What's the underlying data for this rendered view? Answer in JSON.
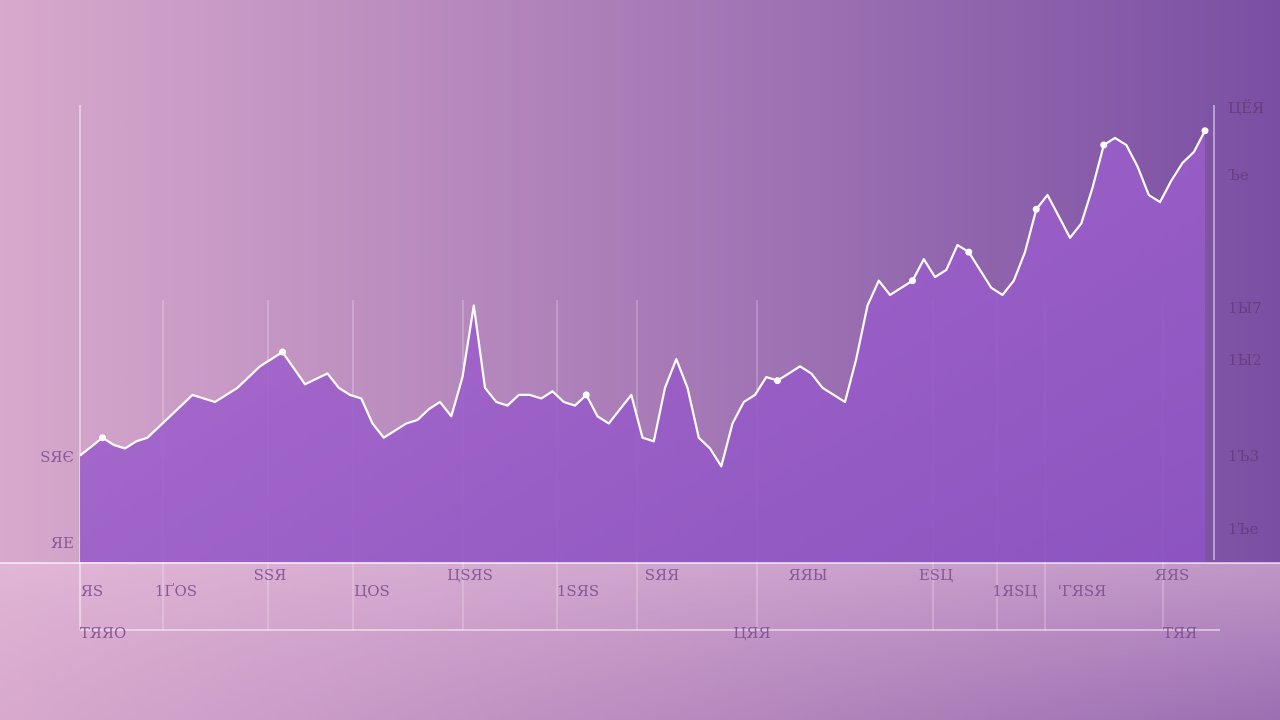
{
  "colors": {
    "bg_left": "#d8a9cc",
    "bg_right": "#7a4fa3",
    "fill_top": "#a766cf",
    "fill_bottom": "#8d54c2",
    "line": "#ffffff"
  },
  "chart_data": {
    "type": "area",
    "title": "",
    "xlabel": "",
    "ylabel": "",
    "grid": false,
    "legend": "none",
    "xlim": [
      0,
      100
    ],
    "ylim": [
      0,
      100
    ],
    "x": [
      0,
      2,
      3,
      4,
      5,
      6,
      8,
      10,
      12,
      14,
      16,
      18,
      20,
      22,
      23,
      24,
      25,
      26,
      27,
      28,
      29,
      30,
      31,
      32,
      33,
      34,
      35,
      36,
      37,
      38,
      39,
      40,
      41,
      42,
      43,
      44,
      45,
      46,
      47,
      48,
      49,
      50,
      51,
      52,
      53,
      54,
      55,
      56,
      57,
      58,
      59,
      60,
      61,
      62,
      63,
      64,
      65,
      66,
      67,
      68,
      69,
      70,
      71,
      72,
      73,
      74,
      75,
      76,
      77,
      78,
      79,
      80,
      81,
      82,
      83,
      84,
      85,
      86,
      87,
      88,
      89,
      90,
      91,
      92,
      93,
      94,
      95,
      96,
      97,
      98,
      99,
      100
    ],
    "values": [
      13,
      18,
      16,
      15,
      17,
      18,
      24,
      30,
      28,
      32,
      38,
      42,
      33,
      36,
      32,
      30,
      29,
      22,
      18,
      20,
      22,
      23,
      26,
      28,
      24,
      35,
      55,
      32,
      28,
      27,
      30,
      30,
      29,
      31,
      28,
      27,
      30,
      24,
      22,
      26,
      30,
      18,
      17,
      32,
      40,
      32,
      18,
      15,
      10,
      22,
      28,
      30,
      35,
      34,
      36,
      38,
      36,
      32,
      30,
      28,
      40,
      55,
      62,
      58,
      60,
      62,
      68,
      63,
      65,
      72,
      70,
      65,
      60,
      58,
      62,
      70,
      82,
      86,
      80,
      74,
      78,
      88,
      100,
      102,
      100,
      94,
      86,
      84,
      90,
      95,
      98,
      104
    ],
    "y_tick_labels_left": [
      "ЅЯЄ",
      "ЯЕ"
    ],
    "y_tick_labels_right": [
      "ЦЁЯ",
      "Ъе",
      "1Ы7",
      "1Ы2",
      "1Ъ3",
      "1Ъе"
    ],
    "x_tick_labels_row1": [
      "ЯЅ",
      "1ҐОЅ",
      "ЅЅЯ",
      "ЦОЅ",
      "ЦЅЯЅ",
      "1ЅЯЅ",
      "ЅЯЯ",
      "ЯЯЫ",
      "ЕЅЦ",
      "1ЯЅЦ",
      "'ГЯЅЯ",
      "ЯЯЅ"
    ],
    "x_tick_labels_row2": [
      "ТЯЯО",
      "ЦЯЯ",
      "ТЯЯ"
    ]
  }
}
